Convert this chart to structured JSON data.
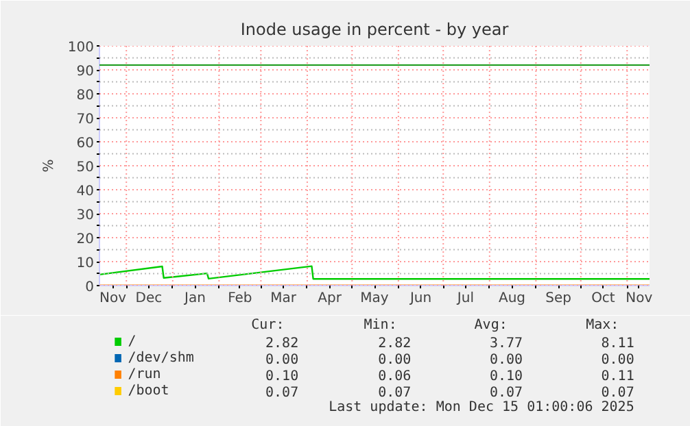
{
  "chart_data": {
    "type": "line",
    "title": "Inode usage in percent - by year",
    "ylabel": "%",
    "xlim": [
      "2024-11-13",
      "2025-11-16"
    ],
    "ylim": [
      0,
      100
    ],
    "xticks": [
      {
        "value": "2024-11-22",
        "label": "Nov"
      },
      {
        "value": "2024-12-01",
        "label": null
      },
      {
        "value": "2024-12-16",
        "label": "Dec"
      },
      {
        "value": "2025-01-01",
        "label": null
      },
      {
        "value": "2025-01-16",
        "label": "Jan"
      },
      {
        "value": "2025-02-01",
        "label": null
      },
      {
        "value": "2025-02-15",
        "label": "Feb"
      },
      {
        "value": "2025-03-01",
        "label": null
      },
      {
        "value": "2025-03-16",
        "label": "Mar"
      },
      {
        "value": "2025-04-01",
        "label": null
      },
      {
        "value": "2025-04-16",
        "label": "Apr"
      },
      {
        "value": "2025-05-01",
        "label": null
      },
      {
        "value": "2025-05-16",
        "label": "May"
      },
      {
        "value": "2025-06-01",
        "label": null
      },
      {
        "value": "2025-06-16",
        "label": "Jun"
      },
      {
        "value": "2025-07-01",
        "label": null
      },
      {
        "value": "2025-07-16",
        "label": "Jul"
      },
      {
        "value": "2025-08-01",
        "label": null
      },
      {
        "value": "2025-08-16",
        "label": "Aug"
      },
      {
        "value": "2025-09-01",
        "label": null
      },
      {
        "value": "2025-09-16",
        "label": "Sep"
      },
      {
        "value": "2025-10-01",
        "label": null
      },
      {
        "value": "2025-10-16",
        "label": "Oct"
      },
      {
        "value": "2025-11-01",
        "label": null
      },
      {
        "value": "2025-11-09",
        "label": "Nov"
      }
    ],
    "yticks": [
      0,
      {
        "value": 5,
        "label": null
      },
      10,
      {
        "value": 15,
        "label": null
      },
      20,
      {
        "value": 25,
        "label": null
      },
      30,
      {
        "value": 35,
        "label": null
      },
      40,
      {
        "value": 45,
        "label": null
      },
      50,
      {
        "value": 55,
        "label": null
      },
      60,
      {
        "value": 65,
        "label": null
      },
      70,
      {
        "value": 75,
        "label": null
      },
      80,
      {
        "value": 85,
        "label": null
      },
      90,
      {
        "value": 95,
        "label": null
      },
      100
    ],
    "grid": true,
    "legend": "bottom",
    "ref_lines": [
      {
        "axis": "y",
        "value": 92,
        "label": null,
        "color": "#1a9a1a"
      }
    ],
    "series": [
      {
        "name": "/",
        "color": "#00cc00",
        "x": [
          "2024-11-13",
          "2024-12-25",
          "2024-12-26",
          "2025-01-24",
          "2025-01-25",
          "2025-04-04",
          "2025-04-05",
          "2025-11-16"
        ],
        "values": [
          4.6,
          8.0,
          3.2,
          5.1,
          2.9,
          8.1,
          2.8,
          2.8
        ]
      },
      {
        "name": "/dev/shm",
        "color": "#0066b3"
      },
      {
        "name": "/run",
        "color": "#ff8000",
        "x": [
          "2024-11-13",
          "2025-11-16"
        ],
        "values": [
          0.1,
          0.1
        ]
      },
      {
        "name": "/boot",
        "color": "#ffcc00"
      }
    ],
    "annotations": [
      "Cur:",
      "Min:",
      "Avg:",
      "Max:",
      "2.82",
      "2.82",
      "3.77",
      "8.11",
      "0.00",
      "0.00",
      "0.00",
      "0.00",
      "0.10",
      "0.06",
      "0.10",
      "0.11",
      "0.07",
      "0.07",
      "0.07",
      "0.07",
      "Last update: Mon Dec 15 01:00:06 2025"
    ]
  }
}
